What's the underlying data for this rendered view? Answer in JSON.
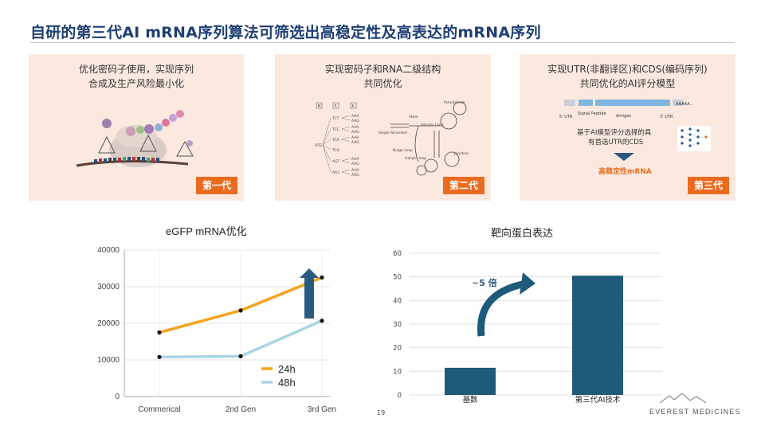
{
  "title": "自研的第三代AI mRNA序列算法可筛选出高稳定性及高表达的mRNA序列",
  "panels": [
    {
      "text_line1": "优化密码子使用，实现序列",
      "text_line2": "合成及生产风险最小化",
      "badge": "第一代"
    },
    {
      "text_line1": "实现密码子和RNA二级结构",
      "text_line2": "共同优化",
      "badge": "第二代",
      "tree": {
        "mrk": [
          "M",
          "R",
          "K"
        ],
        "root": "ATG",
        "codons": [
          "TCT",
          "TCC",
          "TCA",
          "TCG",
          "AGT",
          "AGC"
        ],
        "aaa": [
          "AAA",
          "AAG"
        ]
      },
      "rna_labels": [
        "Pseudoknot",
        "Stem",
        "Single Stranded",
        "Interior Loop",
        "Bulge Loop",
        "Junction",
        "Hairpin loop"
      ]
    },
    {
      "text_line1": "实现UTR(非翻译区)和CDS(编码序列)",
      "text_line2": "共同优化的AI评分模型",
      "badge": "第三代",
      "seq_labels": {
        "utr5": "5' UTR",
        "signal": "Signal Peptide",
        "antigen": "Antigen",
        "utr3": "3' UTR",
        "polya": "AAAAA..."
      },
      "ai_text_line1": "基于AI模型评分选择的具",
      "ai_text_line2": "有首选UTR的CDS",
      "result": "高稳定性mRNA"
    }
  ],
  "chart_data": [
    {
      "type": "line",
      "title": "eGFP mRNA优化",
      "categories": [
        "Commerical",
        "2nd Gen",
        "3rd Gen"
      ],
      "series": [
        {
          "name": "24h",
          "values": [
            17500,
            23500,
            32500
          ],
          "color": "#f5a31a"
        },
        {
          "name": "48h",
          "values": [
            10800,
            11000,
            20700
          ],
          "color": "#a9d5e6"
        }
      ],
      "yticks": [
        "0",
        "10000",
        "20000",
        "30000",
        "40000"
      ],
      "ylim": [
        0,
        40000
      ],
      "grid": true,
      "legend": "bottom-right"
    },
    {
      "type": "bar",
      "title": "靶向蛋白表达",
      "categories": [
        "基数",
        "第三代AI技术"
      ],
      "values": [
        11.5,
        50.5
      ],
      "yticks": [
        "0",
        "10",
        "20",
        "30",
        "40",
        "50",
        "60"
      ],
      "ylim": [
        0,
        60
      ],
      "annotation": "~5 倍",
      "color": "#1f5a7a"
    }
  ],
  "page_number": "19",
  "logo": "EVEREST MEDICINES",
  "colors": {
    "title": "#1f3f73",
    "panel_bg": "#fbe9df",
    "badge": "#ea6b1f",
    "arrow": "#1f5a7a",
    "bar": "#1f5a7a"
  }
}
